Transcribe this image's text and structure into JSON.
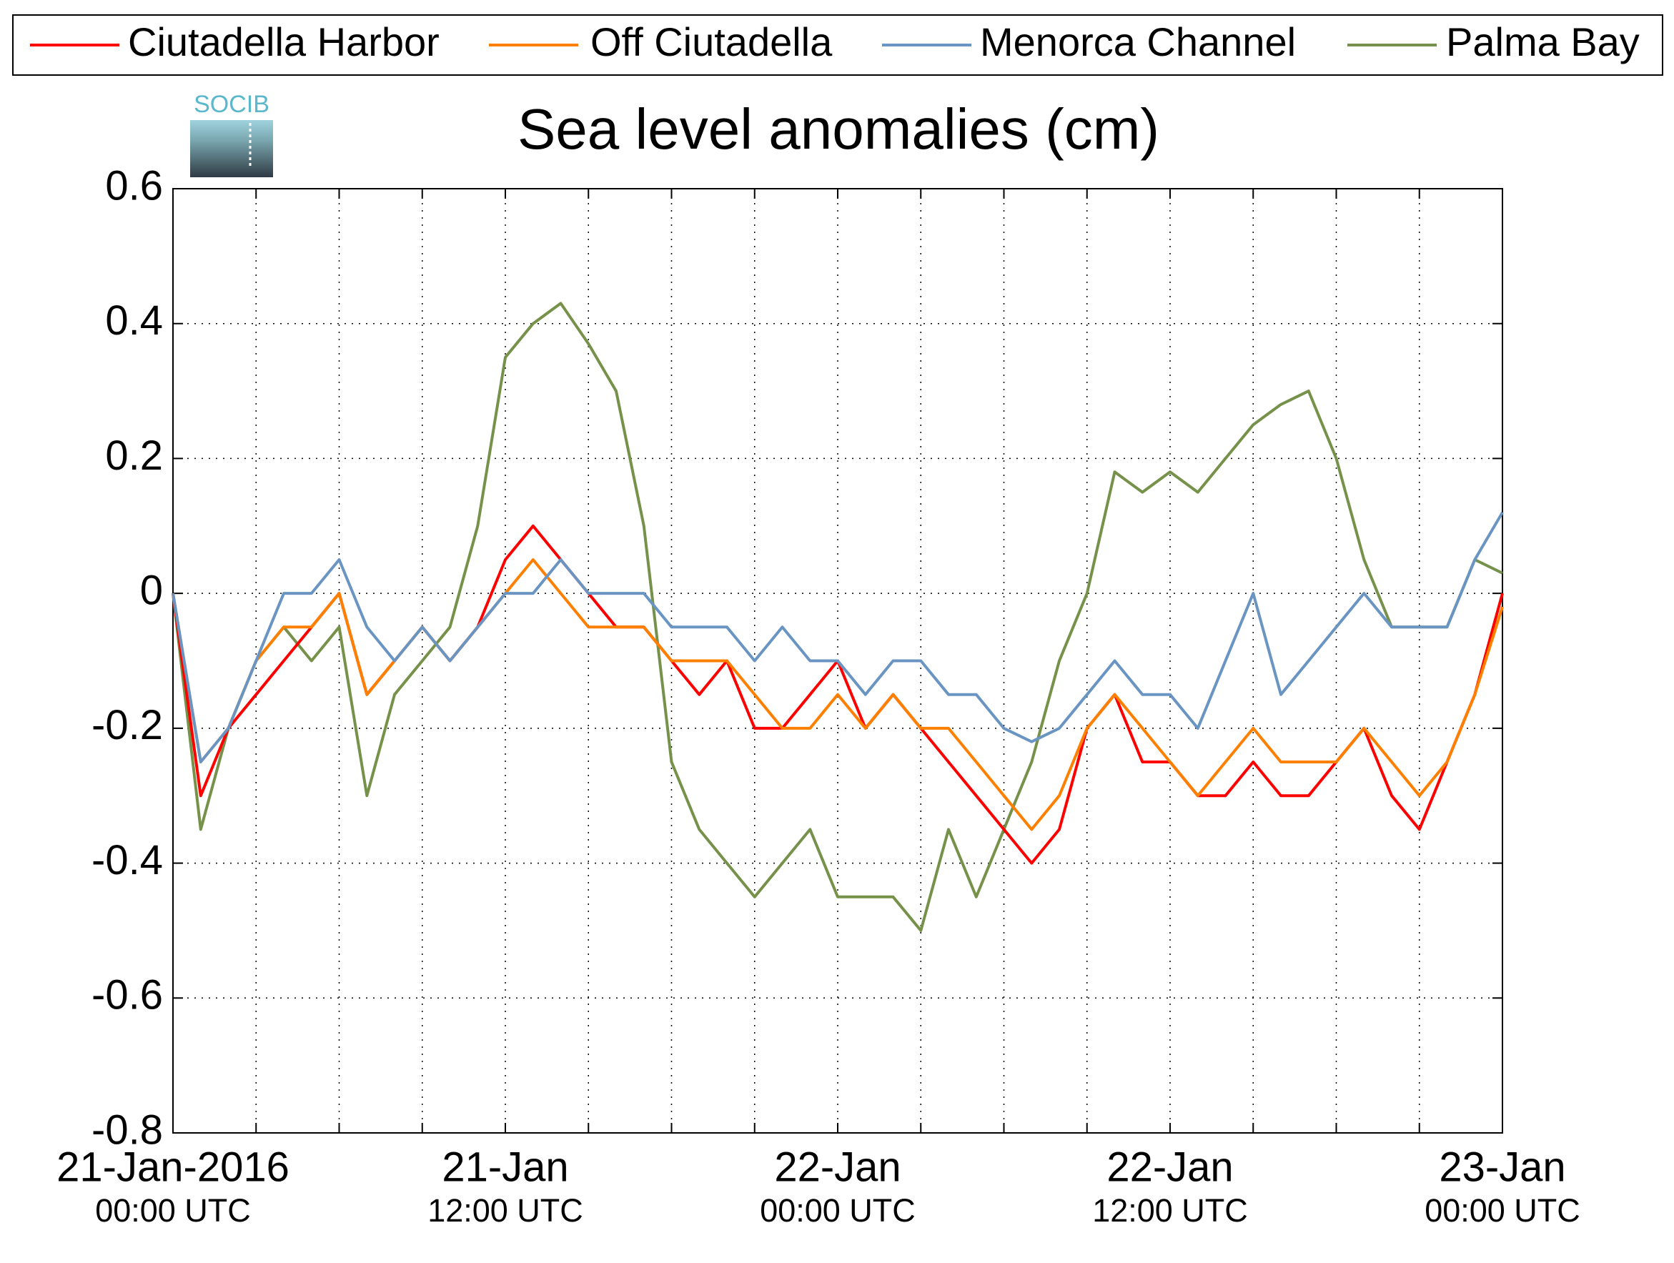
{
  "chart_data": {
    "type": "line",
    "title": "Sea level anomalies (cm)",
    "logo_text": "SOCIB",
    "x": [
      "2016-01-21T00:00Z",
      "2016-01-21T01:00Z",
      "2016-01-21T02:00Z",
      "2016-01-21T03:00Z",
      "2016-01-21T04:00Z",
      "2016-01-21T05:00Z",
      "2016-01-21T06:00Z",
      "2016-01-21T07:00Z",
      "2016-01-21T08:00Z",
      "2016-01-21T09:00Z",
      "2016-01-21T10:00Z",
      "2016-01-21T11:00Z",
      "2016-01-21T12:00Z",
      "2016-01-21T13:00Z",
      "2016-01-21T14:00Z",
      "2016-01-21T15:00Z",
      "2016-01-21T16:00Z",
      "2016-01-21T17:00Z",
      "2016-01-21T18:00Z",
      "2016-01-21T19:00Z",
      "2016-01-21T20:00Z",
      "2016-01-21T21:00Z",
      "2016-01-21T22:00Z",
      "2016-01-21T23:00Z",
      "2016-01-22T00:00Z",
      "2016-01-22T01:00Z",
      "2016-01-22T02:00Z",
      "2016-01-22T03:00Z",
      "2016-01-22T04:00Z",
      "2016-01-22T05:00Z",
      "2016-01-22T06:00Z",
      "2016-01-22T07:00Z",
      "2016-01-22T08:00Z",
      "2016-01-22T09:00Z",
      "2016-01-22T10:00Z",
      "2016-01-22T11:00Z",
      "2016-01-22T12:00Z",
      "2016-01-22T13:00Z",
      "2016-01-22T14:00Z",
      "2016-01-22T15:00Z",
      "2016-01-22T16:00Z",
      "2016-01-22T17:00Z",
      "2016-01-22T18:00Z",
      "2016-01-22T19:00Z",
      "2016-01-22T20:00Z",
      "2016-01-22T21:00Z",
      "2016-01-22T22:00Z",
      "2016-01-22T23:00Z",
      "2016-01-23T00:00Z"
    ],
    "series": [
      {
        "name": "Ciutadella Harbor",
        "color": "#ff0000",
        "values": [
          0.0,
          -0.3,
          -0.2,
          -0.15,
          -0.1,
          -0.05,
          0.0,
          -0.15,
          -0.1,
          -0.05,
          -0.1,
          -0.05,
          0.05,
          0.1,
          0.05,
          0.0,
          -0.05,
          -0.05,
          -0.1,
          -0.15,
          -0.1,
          -0.2,
          -0.2,
          -0.15,
          -0.1,
          -0.2,
          -0.15,
          -0.2,
          -0.25,
          -0.3,
          -0.35,
          -0.4,
          -0.35,
          -0.2,
          -0.15,
          -0.25,
          -0.25,
          -0.3,
          -0.3,
          -0.25,
          -0.3,
          -0.3,
          -0.25,
          -0.2,
          -0.3,
          -0.35,
          -0.25,
          -0.15,
          0.0
        ]
      },
      {
        "name": "Off Ciutadella",
        "color": "#ff8000",
        "values": [
          0.0,
          -0.25,
          -0.2,
          -0.1,
          -0.05,
          -0.05,
          0.0,
          -0.15,
          -0.1,
          -0.05,
          -0.1,
          -0.05,
          0.0,
          0.05,
          0.0,
          -0.05,
          -0.05,
          -0.05,
          -0.1,
          -0.1,
          -0.1,
          -0.15,
          -0.2,
          -0.2,
          -0.15,
          -0.2,
          -0.15,
          -0.2,
          -0.2,
          -0.25,
          -0.3,
          -0.35,
          -0.3,
          -0.2,
          -0.15,
          -0.2,
          -0.25,
          -0.3,
          -0.25,
          -0.2,
          -0.25,
          -0.25,
          -0.25,
          -0.2,
          -0.25,
          -0.3,
          -0.25,
          -0.15,
          -0.02
        ]
      },
      {
        "name": "Menorca Channel",
        "color": "#6a95c2",
        "values": [
          0.0,
          -0.25,
          -0.2,
          -0.1,
          0.0,
          0.0,
          0.05,
          -0.05,
          -0.1,
          -0.05,
          -0.1,
          -0.05,
          0.0,
          0.0,
          0.05,
          0.0,
          0.0,
          0.0,
          -0.05,
          -0.05,
          -0.05,
          -0.1,
          -0.05,
          -0.1,
          -0.1,
          -0.15,
          -0.1,
          -0.1,
          -0.15,
          -0.15,
          -0.2,
          -0.22,
          -0.2,
          -0.15,
          -0.1,
          -0.15,
          -0.15,
          -0.2,
          -0.1,
          0.0,
          -0.15,
          -0.1,
          -0.05,
          0.0,
          -0.05,
          -0.05,
          -0.05,
          0.05,
          0.12
        ]
      },
      {
        "name": "Palma Bay",
        "color": "#76924a",
        "values": [
          0.0,
          -0.35,
          -0.2,
          -0.1,
          -0.05,
          -0.1,
          -0.05,
          -0.3,
          -0.15,
          -0.1,
          -0.05,
          0.1,
          0.35,
          0.4,
          0.43,
          0.37,
          0.3,
          0.1,
          -0.25,
          -0.35,
          -0.4,
          -0.45,
          -0.4,
          -0.35,
          -0.45,
          -0.45,
          -0.45,
          -0.5,
          -0.35,
          -0.45,
          -0.35,
          -0.25,
          -0.1,
          0.0,
          0.18,
          0.15,
          0.18,
          0.15,
          0.2,
          0.25,
          0.28,
          0.3,
          0.2,
          0.05,
          -0.05,
          -0.05,
          -0.05,
          0.05,
          0.03
        ]
      }
    ],
    "draw_order": [
      3,
      0,
      1,
      2
    ],
    "xlim": [
      "2016-01-21T00:00Z",
      "2016-01-23T00:00Z"
    ],
    "xticks": [
      {
        "value": "2016-01-21T00:00Z",
        "label": "21-Jan-2016",
        "sublabel": "00:00 UTC"
      },
      "2016-01-21T03:00Z",
      "2016-01-21T06:00Z",
      "2016-01-21T09:00Z",
      {
        "value": "2016-01-21T12:00Z",
        "label": "21-Jan",
        "sublabel": "12:00 UTC"
      },
      "2016-01-21T15:00Z",
      "2016-01-21T18:00Z",
      "2016-01-21T21:00Z",
      {
        "value": "2016-01-22T00:00Z",
        "label": "22-Jan",
        "sublabel": "00:00 UTC"
      },
      "2016-01-22T03:00Z",
      "2016-01-22T06:00Z",
      "2016-01-22T09:00Z",
      {
        "value": "2016-01-22T12:00Z",
        "label": "22-Jan",
        "sublabel": "12:00 UTC"
      },
      "2016-01-22T15:00Z",
      "2016-01-22T18:00Z",
      "2016-01-22T21:00Z",
      {
        "value": "2016-01-23T00:00Z",
        "label": "23-Jan",
        "sublabel": "00:00 UTC"
      }
    ],
    "ylim": [
      -0.8,
      0.6
    ],
    "yticks": [
      -0.8,
      -0.6,
      -0.4,
      -0.2,
      0,
      0.2,
      0.4,
      0.6
    ],
    "grid": true,
    "legend": "top"
  }
}
